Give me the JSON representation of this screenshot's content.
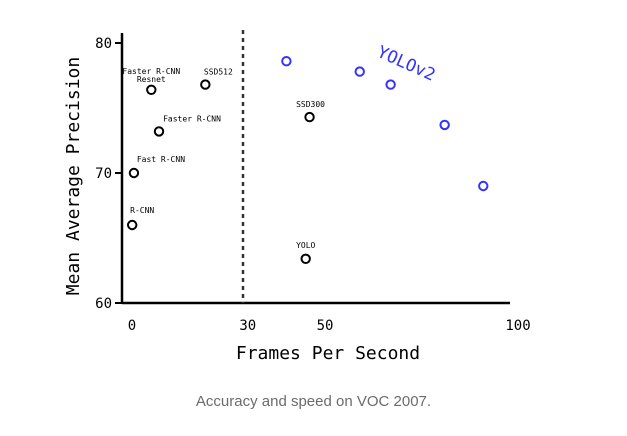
{
  "caption": "Accuracy and speed on VOC 2007.",
  "chart_data": {
    "type": "scatter",
    "xlabel": "Frames Per Second",
    "ylabel": "Mean Average Precision",
    "xlim": [
      0,
      100
    ],
    "ylim": [
      60,
      80
    ],
    "xticks": [
      0,
      30,
      50,
      100
    ],
    "yticks": [
      60,
      70,
      80
    ],
    "realtime_threshold_x": 30,
    "series": [
      {
        "color": "#000000",
        "points": [
          {
            "label": "Faster R-CNN Resnet",
            "x": 5,
            "y": 76.4
          },
          {
            "label": "SSD512",
            "x": 19,
            "y": 76.8
          },
          {
            "label": "Faster R-CNN",
            "x": 7,
            "y": 73.2
          },
          {
            "label": "SSD300",
            "x": 46,
            "y": 74.3
          },
          {
            "label": "Fast R-CNN",
            "x": 0.5,
            "y": 70.0
          },
          {
            "label": "R-CNN",
            "x": 0.05,
            "y": 66.0
          },
          {
            "label": "YOLO",
            "x": 45,
            "y": 63.4
          }
        ]
      },
      {
        "name": "YOLOv2",
        "color": "#3333ff",
        "points": [
          {
            "x": 40,
            "y": 78.6
          },
          {
            "x": 59,
            "y": 77.8
          },
          {
            "x": 67,
            "y": 76.8
          },
          {
            "x": 81,
            "y": 73.7
          },
          {
            "x": 91,
            "y": 69.0
          }
        ]
      }
    ]
  }
}
